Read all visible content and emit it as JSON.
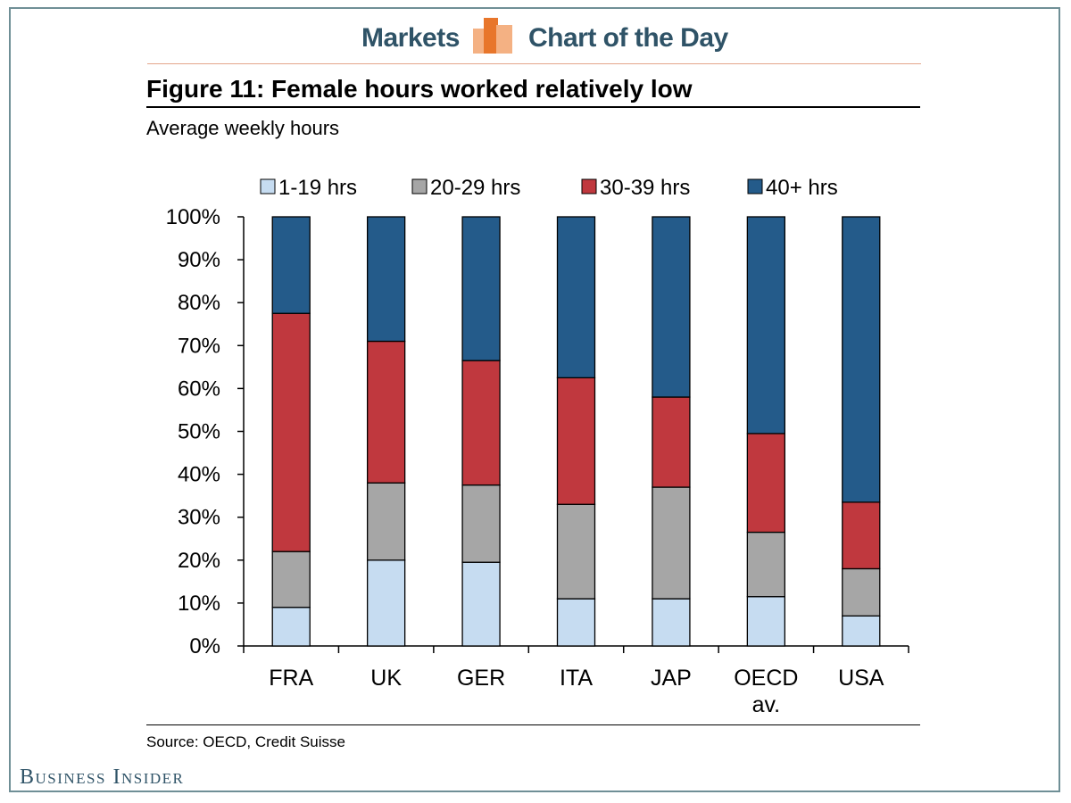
{
  "banner": {
    "left_label": "Markets",
    "right_label": "Chart of the Day"
  },
  "figure": {
    "title": "Figure 11: Female hours worked relatively low",
    "subtitle": "Average weekly hours",
    "source": "Source: OECD, Credit Suisse"
  },
  "brand": {
    "name": "Business Insider"
  },
  "colors": {
    "frame": "#6f8f96",
    "banner_text": "#2f5367",
    "banner_logo_light": "#f4b183",
    "banner_logo_dark": "#e8762b"
  },
  "chart_data": {
    "type": "bar",
    "stacked": true,
    "title": "Figure 11: Female hours worked relatively low",
    "ylabel": "Average weekly hours",
    "categories": [
      "FRA",
      "UK",
      "GER",
      "ITA",
      "JAP",
      "OECD av.",
      "USA"
    ],
    "category_lines": [
      [
        "FRA"
      ],
      [
        "UK"
      ],
      [
        "GER"
      ],
      [
        "ITA"
      ],
      [
        "JAP"
      ],
      [
        "OECD",
        "av."
      ],
      [
        "USA"
      ]
    ],
    "ylim": [
      0,
      100
    ],
    "y_ticks": [
      0,
      10,
      20,
      30,
      40,
      50,
      60,
      70,
      80,
      90,
      100
    ],
    "y_tick_labels": [
      "0%",
      "10%",
      "20%",
      "30%",
      "40%",
      "50%",
      "60%",
      "70%",
      "80%",
      "90%",
      "100%"
    ],
    "grid": false,
    "legend_position": "top",
    "series": [
      {
        "name": "1-19 hrs",
        "color": "#c6dcf1",
        "values": [
          9,
          20,
          19.5,
          11,
          11,
          11.5,
          7
        ]
      },
      {
        "name": "20-29 hrs",
        "color": "#a6a6a6",
        "values": [
          13,
          18,
          18,
          22,
          26,
          15,
          11
        ]
      },
      {
        "name": "30-39 hrs",
        "color": "#c0383e",
        "values": [
          55.5,
          33,
          29,
          29.5,
          21,
          23,
          15.5
        ]
      },
      {
        "name": "40+ hrs",
        "color": "#245b8a",
        "values": [
          22.5,
          29,
          33.5,
          37.5,
          42,
          50.5,
          66.5
        ]
      }
    ]
  }
}
